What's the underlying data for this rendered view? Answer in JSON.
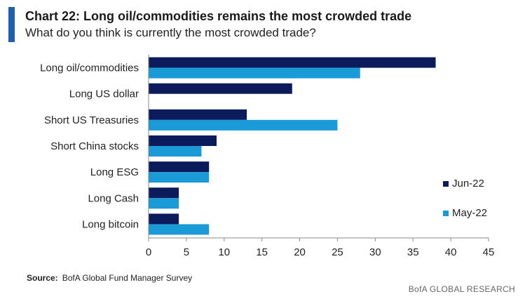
{
  "header": {
    "title": "Chart 22: Long oil/commodities remains the most crowded trade",
    "subtitle": "What do you think is currently the most crowded trade?"
  },
  "footer": {
    "source_label": "Source:",
    "source_text": "BofA Global Fund Manager Survey",
    "brand": "BofA GLOBAL RESEARCH"
  },
  "colors": {
    "accent": "#1f5fb0",
    "jun": "#0c1b5c",
    "may": "#1a9ad6"
  },
  "chart_data": {
    "type": "bar",
    "orientation": "horizontal",
    "categories": [
      "Long oil/commodities",
      "Long US dollar",
      "Short US Treasuries",
      "Short China stocks",
      "Long ESG",
      "Long Cash",
      "Long bitcoin"
    ],
    "series": [
      {
        "name": "Jun-22",
        "values": [
          38,
          19,
          13,
          9,
          8,
          4,
          4
        ]
      },
      {
        "name": "May-22",
        "values": [
          28,
          null,
          25,
          7,
          8,
          4,
          8
        ]
      }
    ],
    "xlim": [
      0,
      45
    ],
    "xticks": [
      0,
      5,
      10,
      15,
      20,
      25,
      30,
      35,
      40,
      45
    ],
    "legend": "right",
    "grid": false
  }
}
